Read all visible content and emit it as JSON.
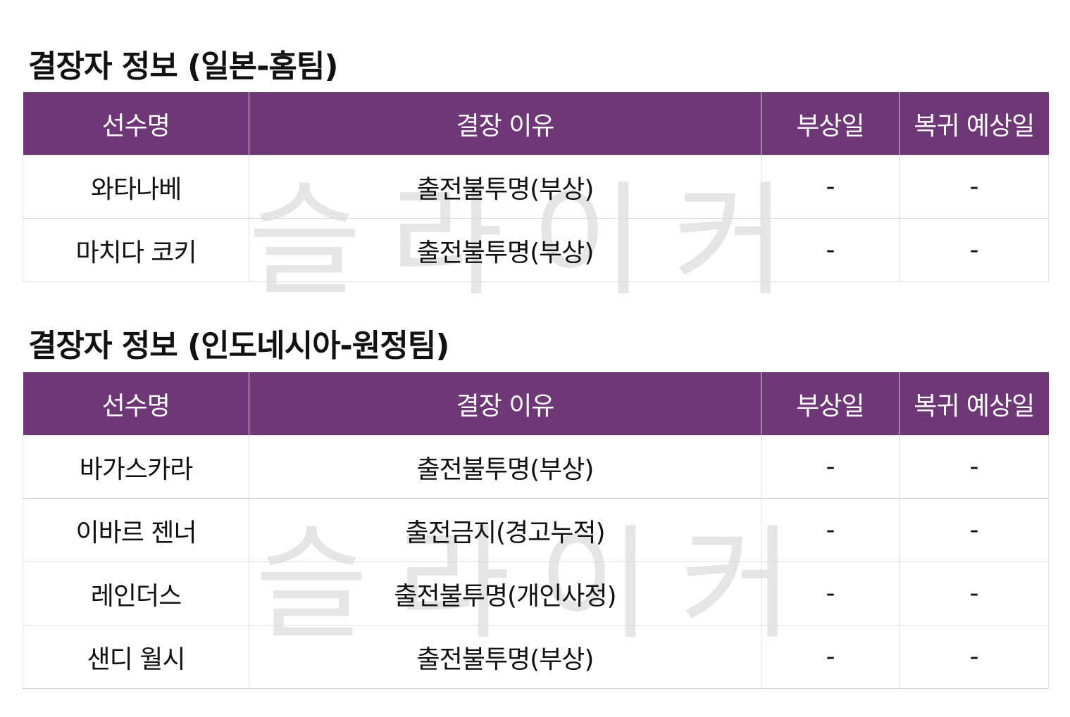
{
  "watermark": "슬라이커",
  "colors": {
    "header_bg": "#6e3776",
    "header_text": "#ffffff"
  },
  "columns": [
    "선수명",
    "결장 이유",
    "부상일",
    "복귀 예상일"
  ],
  "home": {
    "title": "결장자 정보 (일본-홈팀)",
    "rows": [
      [
        "와타나베",
        "출전불투명(부상)",
        "-",
        "-"
      ],
      [
        "마치다 코키",
        "출전불투명(부상)",
        "-",
        "-"
      ]
    ]
  },
  "away": {
    "title": "결장자 정보 (인도네시아-원정팀)",
    "rows": [
      [
        "바가스카라",
        "출전불투명(부상)",
        "-",
        "-"
      ],
      [
        "이바르 젠너",
        "출전금지(경고누적)",
        "-",
        "-"
      ],
      [
        "레인더스",
        "출전불투명(개인사정)",
        "-",
        "-"
      ],
      [
        "샌디 월시",
        "출전불투명(부상)",
        "-",
        "-"
      ]
    ]
  }
}
